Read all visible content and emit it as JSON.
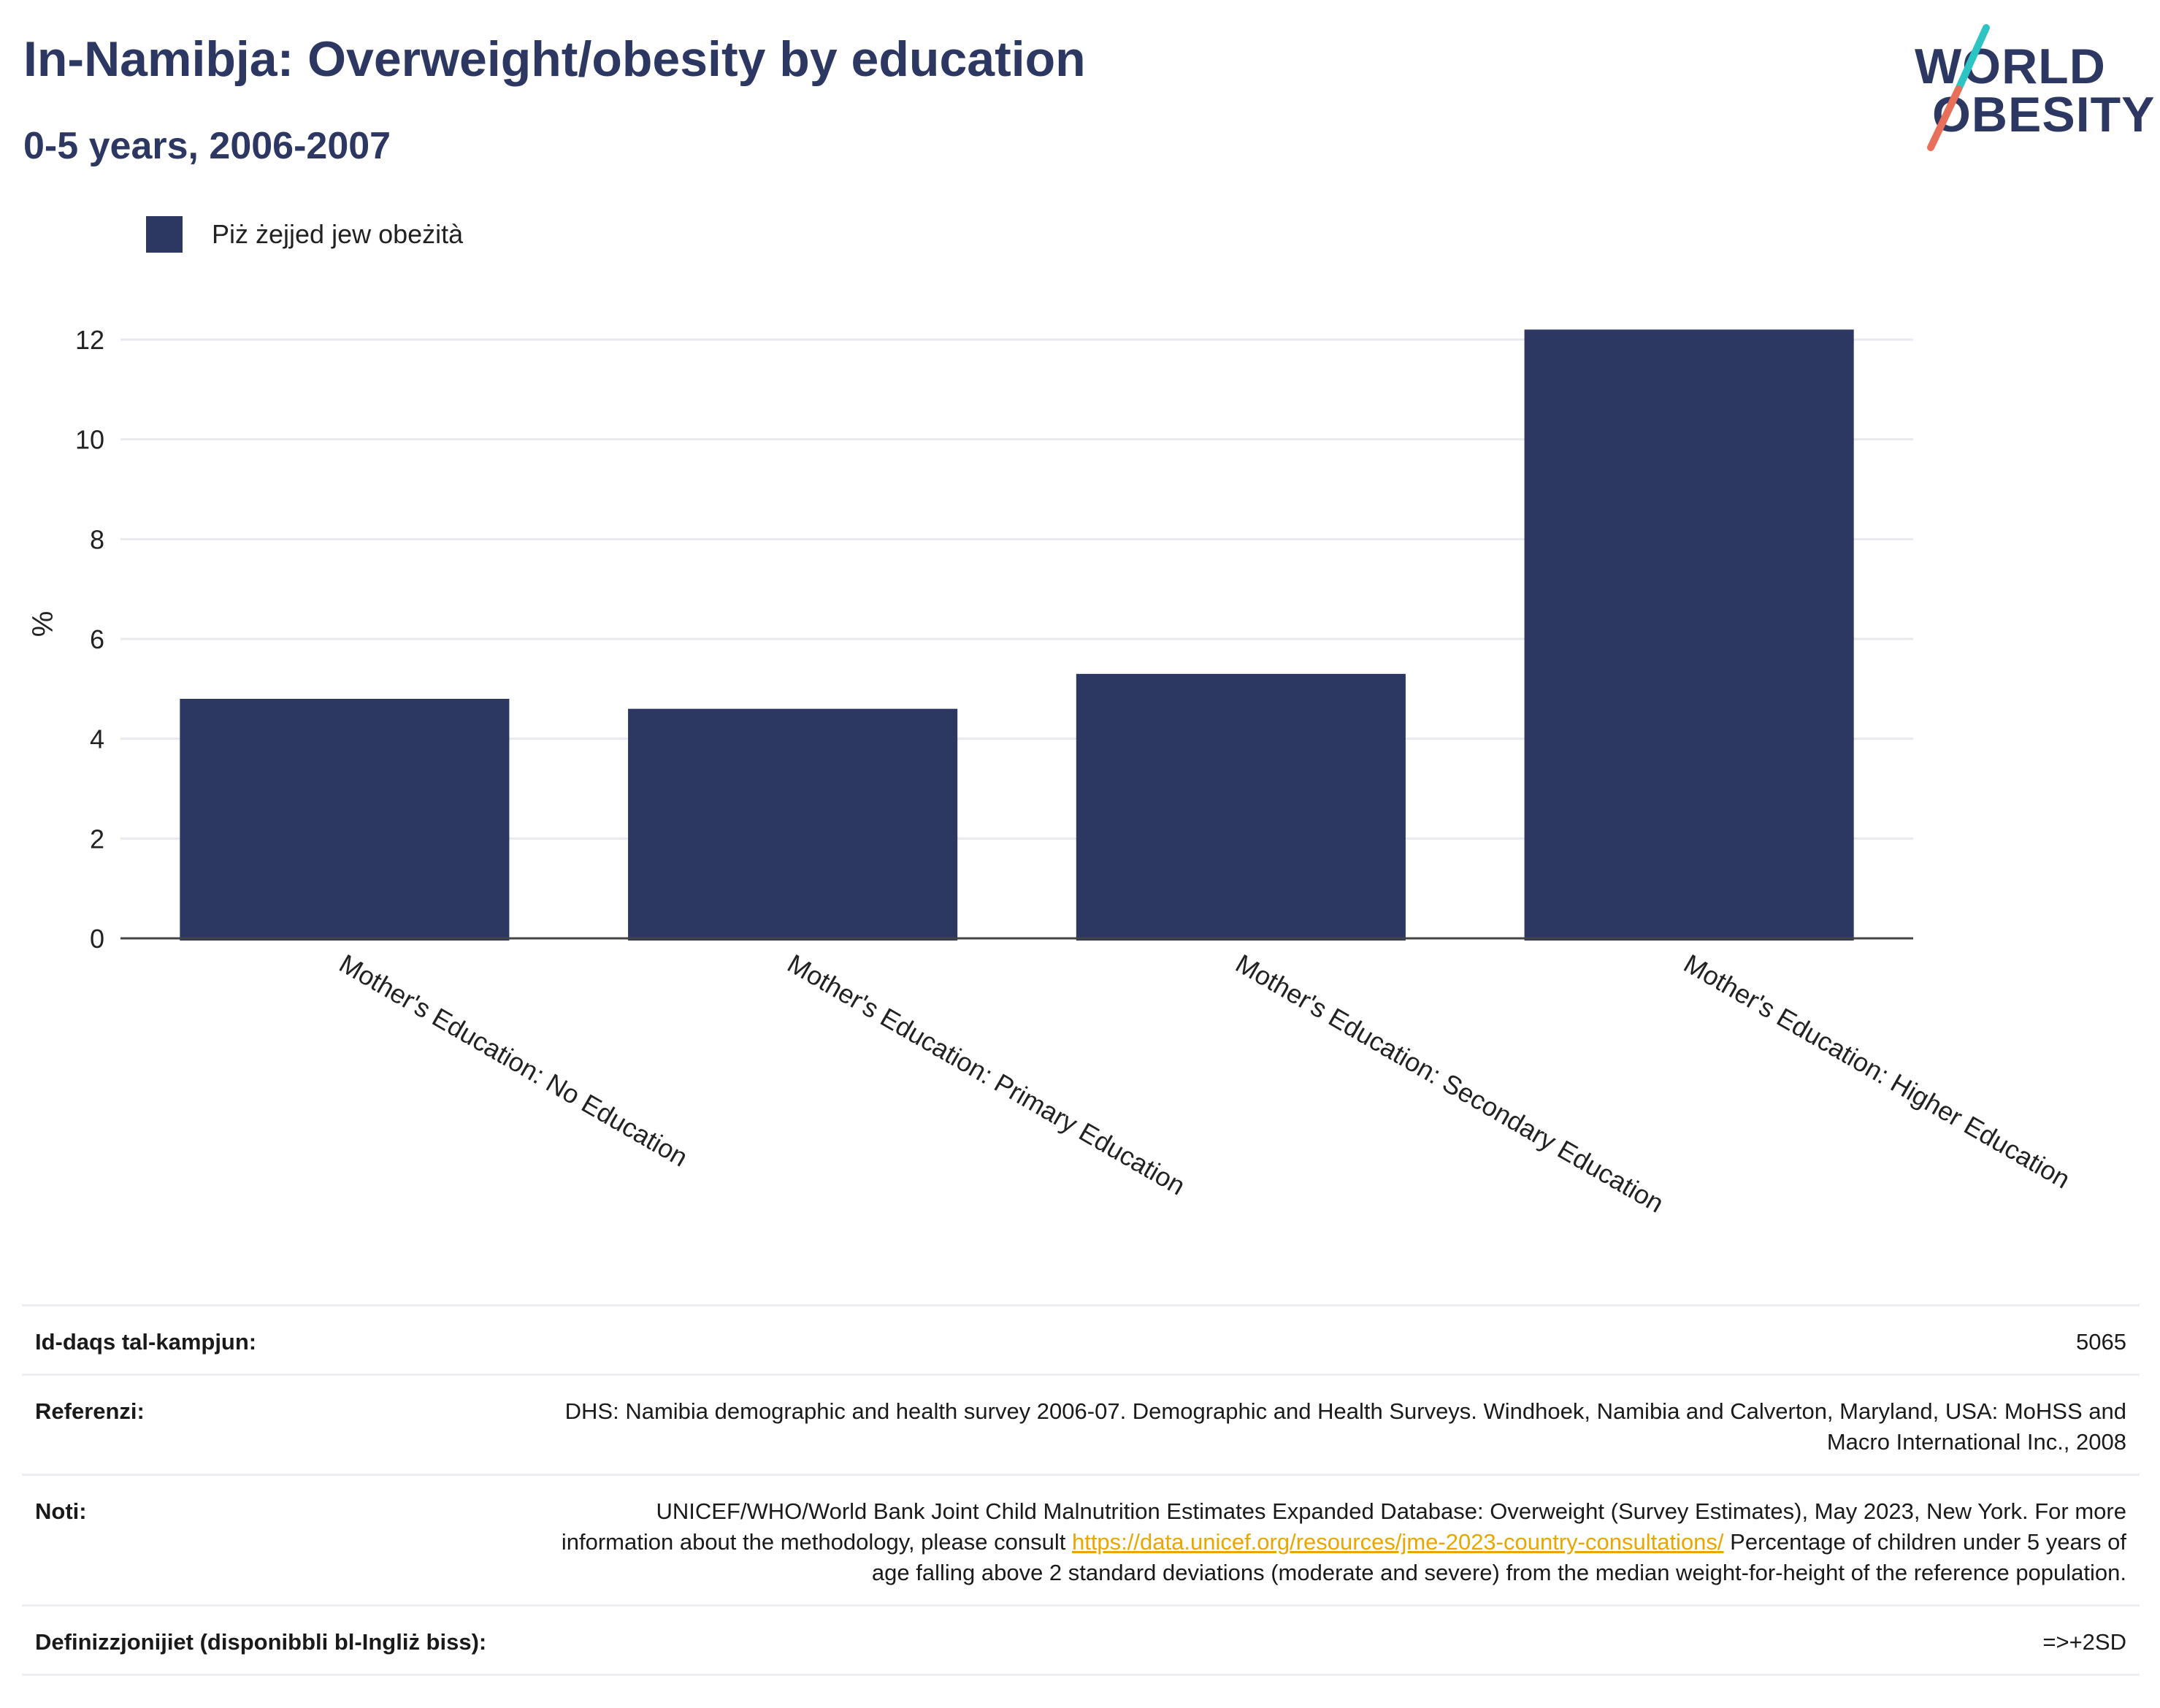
{
  "header": {
    "title": "In-Namibja: Overweight/obesity by education",
    "subtitle": "0-5 years, 2006-2007"
  },
  "logo": {
    "line1": "WORLD",
    "line2": "OBESITY",
    "accent_colors": [
      "#2ec4c4",
      "#e8705a"
    ]
  },
  "legend": {
    "label": "Piż żejjed jew obeżità",
    "color": "#2c3862"
  },
  "chart_data": {
    "type": "bar",
    "categories": [
      "Mother's Education: No Education",
      "Mother's Education: Primary Education",
      "Mother's Education: Secondary Education",
      "Mother's Education: Higher Education"
    ],
    "series": [
      {
        "name": "Piż żejjed jew obeżità",
        "values": [
          4.8,
          4.6,
          5.3,
          12.2
        ]
      }
    ],
    "ylabel": "%",
    "ylim": [
      0,
      12.6
    ],
    "yticks": [
      0,
      2,
      4,
      6,
      8,
      10,
      12
    ],
    "grid": true,
    "legend_position": "top-left",
    "bar_color": "#2c3862"
  },
  "meta": {
    "sample_size_label": "Id-daqs tal-kampjun:",
    "sample_size_value": "5065",
    "references_label": "Referenzi:",
    "references_value": "DHS: Namibia demographic and health survey 2006-07. Demographic and Health Surveys. Windhoek, Namibia and Calverton, Maryland, USA: MoHSS and Macro International Inc., 2008",
    "notes_label": "Noti:",
    "notes_before": "UNICEF/WHO/World Bank Joint Child Malnutrition Estimates Expanded Database: Overweight (Survey Estimates), May 2023, New York. For more information about the methodology, please consult ",
    "notes_link": "https://data.unicef.org/resources/jme-2023-country-consultations/",
    "notes_after": " Percentage of children under 5 years of age falling above 2 standard deviations (moderate and severe) from the median weight-for-height of the reference population.",
    "definitions_label": "Definizzjonijiet (disponibbli bl-Ingliż biss):",
    "definitions_value": "=>+2SD"
  }
}
